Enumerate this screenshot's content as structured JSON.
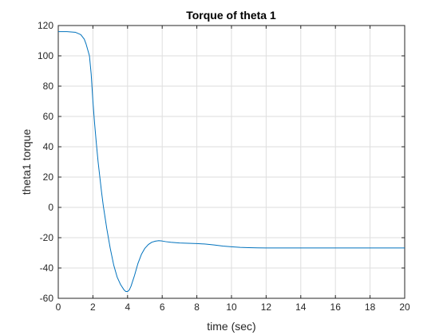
{
  "chart_data": {
    "type": "line",
    "title": "Torque of theta 1",
    "xlabel": "time (sec)",
    "ylabel": "theta1 torque",
    "xlim": [
      0,
      20
    ],
    "ylim": [
      -60,
      120
    ],
    "xticks": [
      0,
      2,
      4,
      6,
      8,
      10,
      12,
      14,
      16,
      18,
      20
    ],
    "yticks": [
      -60,
      -40,
      -20,
      0,
      20,
      40,
      60,
      80,
      100,
      120
    ],
    "grid": true,
    "line_color": "#0072BD",
    "series": [
      {
        "x": [
          0,
          0.5,
          1.0,
          1.3,
          1.5,
          1.6,
          1.7,
          1.8,
          1.9,
          2.0,
          2.1,
          2.2,
          2.3,
          2.4,
          2.5,
          2.6,
          2.8,
          3.0,
          3.2,
          3.4,
          3.6,
          3.8,
          3.9,
          4.0,
          4.1,
          4.2,
          4.4,
          4.6,
          4.8,
          5.0,
          5.2,
          5.4,
          5.6,
          5.8,
          6.0,
          6.2,
          6.5,
          7.0,
          7.5,
          8.0,
          8.5,
          9.0,
          9.5,
          10.0,
          10.5,
          11.0,
          11.5,
          12.0,
          13.0,
          14.0,
          15.0,
          16.0,
          17.0,
          18.0,
          19.0,
          20.0
        ],
        "y": [
          116,
          116,
          115.5,
          114,
          111,
          108,
          104,
          100,
          88,
          70,
          55,
          42,
          30,
          20,
          10,
          1,
          -14,
          -27,
          -38,
          -46,
          -51,
          -54.5,
          -55.5,
          -55.5,
          -54.5,
          -52,
          -45,
          -37,
          -31,
          -27,
          -24.5,
          -23,
          -22.3,
          -22,
          -22.2,
          -22.6,
          -23,
          -23.5,
          -23.7,
          -23.9,
          -24.2,
          -24.8,
          -25.5,
          -26,
          -26.4,
          -26.6,
          -26.7,
          -26.8,
          -26.8,
          -26.8,
          -26.8,
          -26.8,
          -26.8,
          -26.8,
          -26.8,
          -26.8
        ]
      }
    ]
  }
}
